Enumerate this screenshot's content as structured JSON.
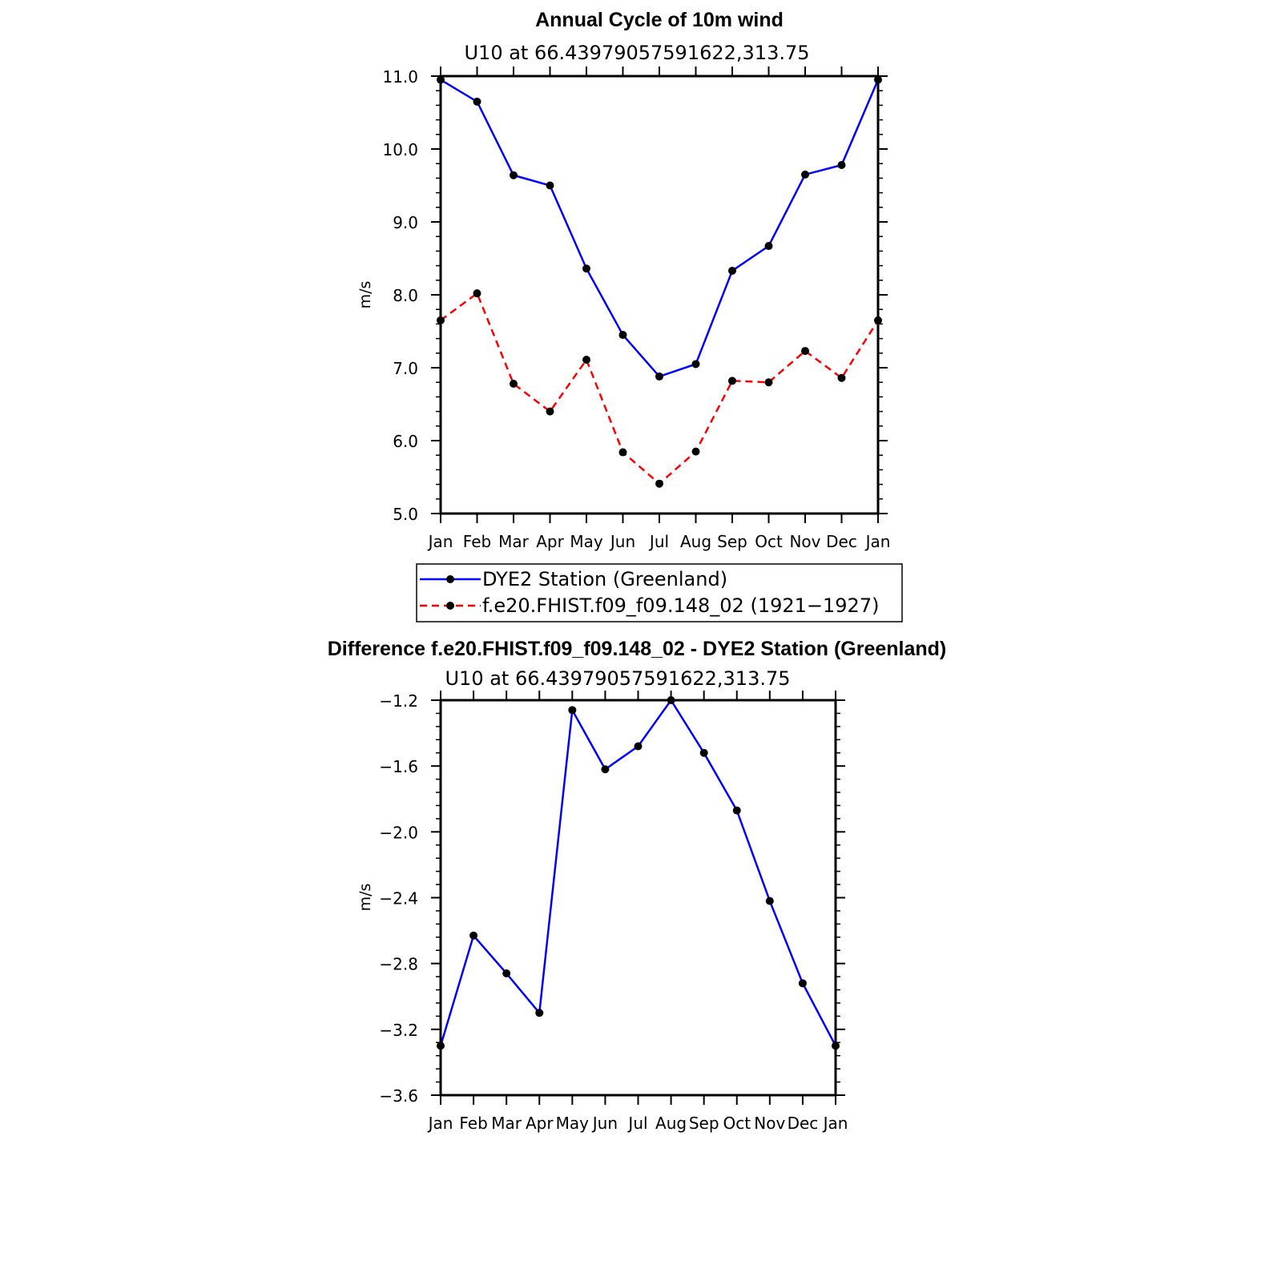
{
  "chart_data": [
    {
      "type": "line",
      "title": "Annual Cycle of 10m wind",
      "subtitle": "U10  at  66.43979057591622,313.75",
      "ylabel": "m/s",
      "xlabel": "",
      "categories": [
        "Jan",
        "Feb",
        "Mar",
        "Apr",
        "May",
        "Jun",
        "Jul",
        "Aug",
        "Sep",
        "Oct",
        "Nov",
        "Dec",
        "Jan"
      ],
      "ylim": [
        5.0,
        11.0
      ],
      "yticks": [
        "5.0",
        "6.0",
        "7.0",
        "8.0",
        "9.0",
        "10.0",
        "11.0"
      ],
      "ytick_values": [
        5.0,
        6.0,
        7.0,
        8.0,
        9.0,
        10.0,
        11.0
      ],
      "series": [
        {
          "name": "DYE2 Station (Greenland)",
          "color": "#0000ff",
          "dashed": false,
          "values": [
            10.95,
            10.65,
            9.64,
            9.5,
            8.36,
            7.45,
            6.88,
            7.05,
            8.33,
            8.67,
            9.65,
            9.78,
            10.95
          ]
        },
        {
          "name": "f.e20.FHIST.f09_f09.148_02 (1921−1927)",
          "color": "#ff0000",
          "dashed": true,
          "values": [
            7.65,
            8.02,
            6.78,
            6.4,
            7.11,
            5.84,
            5.41,
            5.85,
            6.82,
            6.8,
            7.23,
            6.86,
            7.65
          ]
        }
      ]
    },
    {
      "type": "line",
      "title": "Difference f.e20.FHIST.f09_f09.148_02 - DYE2 Station (Greenland)",
      "subtitle": "U10  at  66.43979057591622,313.75",
      "ylabel": "m/s",
      "xlabel": "",
      "categories": [
        "Jan",
        "Feb",
        "Mar",
        "Apr",
        "May",
        "Jun",
        "Jul",
        "Aug",
        "Sep",
        "Oct",
        "Nov",
        "Dec",
        "Jan"
      ],
      "ylim": [
        -3.6,
        -1.2
      ],
      "yticks": [
        "−3.6",
        "−3.2",
        "−2.8",
        "−2.4",
        "−2.0",
        "−1.6",
        "−1.2"
      ],
      "ytick_values": [
        -3.6,
        -3.2,
        -2.8,
        -2.4,
        -2.0,
        -1.6,
        -1.2
      ],
      "series": [
        {
          "name": "Difference",
          "color": "#0000ff",
          "dashed": false,
          "values": [
            -3.3,
            -2.63,
            -2.86,
            -3.1,
            -1.26,
            -1.62,
            -1.48,
            -1.2,
            -1.52,
            -1.87,
            -2.42,
            -2.92,
            -3.3
          ]
        }
      ]
    }
  ]
}
